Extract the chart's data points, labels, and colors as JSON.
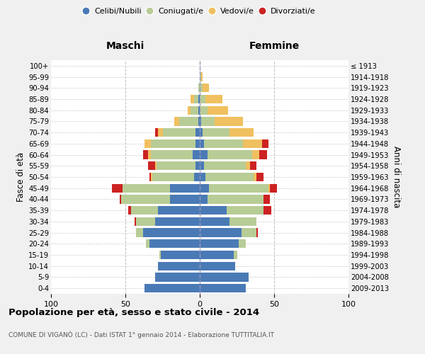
{
  "age_groups": [
    "0-4",
    "5-9",
    "10-14",
    "15-19",
    "20-24",
    "25-29",
    "30-34",
    "35-39",
    "40-44",
    "45-49",
    "50-54",
    "55-59",
    "60-64",
    "65-69",
    "70-74",
    "75-79",
    "80-84",
    "85-89",
    "90-94",
    "95-99",
    "100+"
  ],
  "birth_years": [
    "2009-2013",
    "2004-2008",
    "1999-2003",
    "1994-1998",
    "1989-1993",
    "1984-1988",
    "1979-1983",
    "1974-1978",
    "1969-1973",
    "1964-1968",
    "1959-1963",
    "1954-1958",
    "1949-1953",
    "1944-1948",
    "1939-1943",
    "1934-1938",
    "1929-1933",
    "1924-1928",
    "1919-1923",
    "1914-1918",
    "≤ 1913"
  ],
  "male": {
    "celibi": [
      37,
      30,
      28,
      26,
      34,
      38,
      30,
      28,
      20,
      20,
      4,
      3,
      5,
      3,
      3,
      1,
      1,
      1,
      0,
      0,
      0
    ],
    "coniugati": [
      0,
      0,
      0,
      1,
      2,
      5,
      13,
      18,
      33,
      32,
      28,
      26,
      28,
      30,
      22,
      13,
      5,
      3,
      1,
      0,
      0
    ],
    "vedovi": [
      0,
      0,
      0,
      0,
      0,
      0,
      0,
      0,
      0,
      0,
      1,
      1,
      2,
      4,
      3,
      3,
      2,
      2,
      0,
      0,
      0
    ],
    "divorziati": [
      0,
      0,
      0,
      0,
      0,
      0,
      1,
      2,
      1,
      7,
      1,
      5,
      3,
      0,
      2,
      0,
      0,
      0,
      0,
      0,
      0
    ]
  },
  "female": {
    "nubili": [
      31,
      33,
      24,
      23,
      26,
      28,
      20,
      18,
      5,
      6,
      4,
      3,
      5,
      3,
      2,
      1,
      0,
      0,
      0,
      0,
      0
    ],
    "coniugate": [
      0,
      0,
      0,
      2,
      5,
      10,
      18,
      25,
      38,
      40,
      32,
      28,
      30,
      26,
      18,
      9,
      5,
      4,
      2,
      1,
      0
    ],
    "vedove": [
      0,
      0,
      0,
      0,
      0,
      0,
      0,
      0,
      0,
      1,
      2,
      3,
      5,
      13,
      16,
      19,
      14,
      11,
      4,
      1,
      0
    ],
    "divorziate": [
      0,
      0,
      0,
      0,
      0,
      1,
      0,
      5,
      4,
      5,
      5,
      4,
      5,
      4,
      0,
      0,
      0,
      0,
      0,
      0,
      0
    ]
  },
  "colors": {
    "celibi_nubili": "#4a7ab5",
    "coniugati": "#b8cc96",
    "vedovi": "#f0c060",
    "divorziati": "#cc2222"
  },
  "xlim": 100,
  "title": "Popolazione per età, sesso e stato civile - 2014",
  "subtitle": "COMUNE DI VIGANÒ (LC) - Dati ISTAT 1° gennaio 2014 - Elaborazione TUTTITALIA.IT",
  "ylabel_left": "Fasce di età",
  "ylabel_right": "Anni di nascita",
  "xlabel_maschi": "Maschi",
  "xlabel_femmine": "Femmine",
  "legend_labels": [
    "Celibi/Nubili",
    "Coniugati/e",
    "Vedovi/e",
    "Divorziati/e"
  ],
  "bg_color": "#f0f0f0",
  "plot_bg": "#ffffff"
}
